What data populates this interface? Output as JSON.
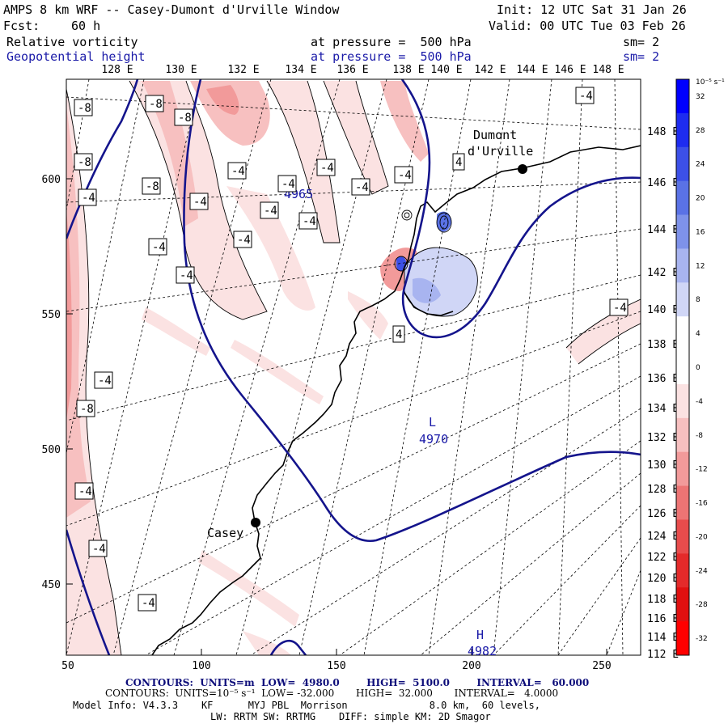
{
  "header": {
    "title": "AMPS 8 km WRF -- Casey-Dumont d'Urville Window",
    "init": "Init: 12 UTC Sat 31 Jan 26",
    "forecast_label": "Fcst:",
    "forecast_value": "60 h",
    "valid": "Valid: 00 UTC Tue 03 Feb 26",
    "field1_name": "Relative vorticity",
    "field1_level": "at pressure =  500 hPa",
    "field1_smooth": "sm= 2",
    "field2_name": "Geopotential height",
    "field2_level": "at pressure =  500 hPa",
    "field2_smooth": "sm= 2"
  },
  "axes": {
    "top_lon_labels": [
      "128 E",
      "130 E",
      "132 E",
      "134 E",
      "136 E",
      "138 E",
      "140 E",
      "142 E",
      "144 E",
      "146 E",
      "148 E"
    ],
    "right_lon_labels": [
      "148 E",
      "146 E",
      "144 E",
      "142 E",
      "140 E",
      "138 E",
      "136 E",
      "134 E",
      "132 E",
      "130 E",
      "128 E",
      "126 E",
      "124 E",
      "122 E",
      "120 E",
      "118 E",
      "116 E",
      "114 E",
      "112 E"
    ],
    "left_y_ticks": [
      "600",
      "550",
      "500",
      "450"
    ],
    "bottom_x_ticks": [
      "50",
      "100",
      "150",
      "200",
      "250"
    ]
  },
  "places": {
    "dumont_line1": "Dumont",
    "dumont_line2": "d'Urville",
    "casey": "Casey"
  },
  "height_labels": {
    "h1": "4965",
    "low_letter": "L",
    "low_value": "4970",
    "high_letter": "H",
    "high_value": "4982"
  },
  "vort_labels": [
    "-8",
    "-8",
    "-8",
    "-8",
    "-4",
    "-4",
    "-4",
    "-4",
    "-4",
    "-8",
    "-4",
    "-4",
    "-4",
    "-4",
    "-4",
    "-4",
    "-4",
    "4",
    "4",
    "-4",
    "-8",
    "-4",
    "-4",
    "-4",
    "-4",
    "-4"
  ],
  "colorbar": {
    "unit": "10⁻⁵ s⁻¹",
    "labels": [
      "32",
      "28",
      "24",
      "20",
      "16",
      "12",
      "8",
      "4",
      "0",
      "-4",
      "-8",
      "-12",
      "-16",
      "-20",
      "-24",
      "-28",
      "-32"
    ],
    "colors": [
      "#0000ff",
      "#1e2cf0",
      "#3c50e8",
      "#5a72e6",
      "#7e92ea",
      "#a8b4f0",
      "#d0d6f6",
      "#ffffff",
      "#ffffff",
      "#fbe2e2",
      "#f7c0c0",
      "#f29a9a",
      "#ed7474",
      "#e84c4c",
      "#e42a2a",
      "#e01010",
      "#ff0000"
    ]
  },
  "footer": {
    "line1": "CONTOURS:  UNITS=m  LOW=  4980.0        HIGH=  5100.0        INTERVAL=   60.000",
    "line2": "CONTOURS:  UNITS=10⁻⁵ s⁻¹  LOW= -32.000       HIGH=  32.000       INTERVAL=   4.0000",
    "line3": "Model Info: V4.3.3    KF      MYJ PBL  Morrison              8.0 km,  60 levels,",
    "line4": "LW: RRTM SW: RRTMG    DIFF: simple KM: 2D Smagor"
  }
}
